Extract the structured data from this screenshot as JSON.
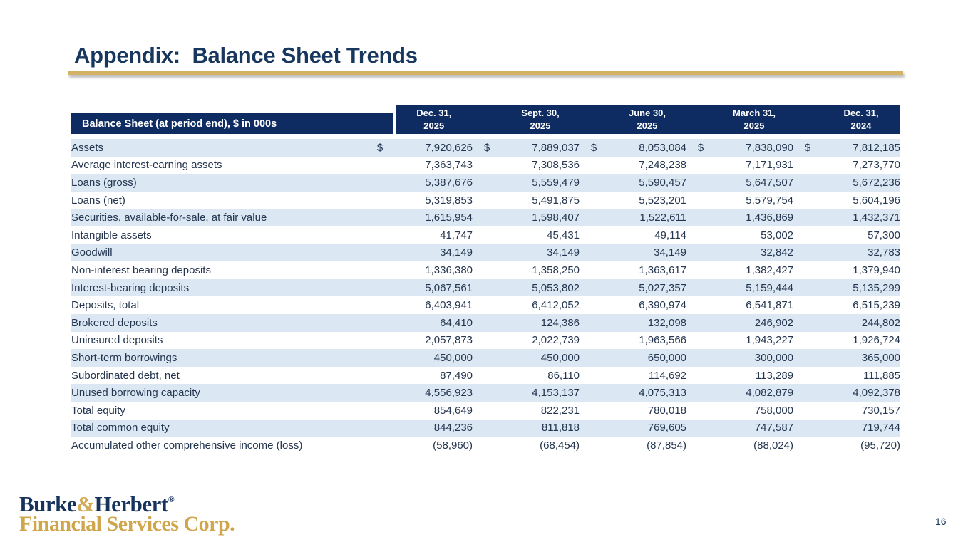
{
  "title": "Appendix:  Balance Sheet Trends",
  "page": {
    "page_number": "16"
  },
  "logo": {
    "brand_burke": "Burke",
    "brand_amp": "&",
    "brand_herbert": "Herbert",
    "reg_mark": "®",
    "subtitle": "Financial Services Corp."
  },
  "colors": {
    "header_navy": "#0e2c62",
    "row_stripe_blue": "#dbe8f4",
    "accent_gold": "#d3b264",
    "title_navy": "#17375f",
    "body_text": "#24354f",
    "logo_gold": "#cfa64c"
  },
  "table": {
    "header_label": "Balance Sheet (at period end), $ in 000s",
    "currency_symbol": "$",
    "columns": [
      {
        "l1": "Dec. 31,",
        "l2": "2025"
      },
      {
        "l1": "Sept. 30,",
        "l2": "2025"
      },
      {
        "l1": "June 30,",
        "l2": "2025"
      },
      {
        "l1": "March 31,",
        "l2": "2025"
      },
      {
        "l1": "Dec. 31,",
        "l2": "2024"
      }
    ],
    "rows": [
      {
        "label": "Assets",
        "dollar": true,
        "values": [
          "7,920,626",
          "7,889,037",
          "8,053,084",
          "7,838,090",
          "7,812,185"
        ]
      },
      {
        "label": "Average interest-earning assets",
        "dollar": false,
        "values": [
          "7,363,743",
          "7,308,536",
          "7,248,238",
          "7,171,931",
          "7,273,770"
        ]
      },
      {
        "label": "Loans (gross)",
        "dollar": false,
        "values": [
          "5,387,676",
          "5,559,479",
          "5,590,457",
          "5,647,507",
          "5,672,236"
        ]
      },
      {
        "label": "Loans (net)",
        "dollar": false,
        "values": [
          "5,319,853",
          "5,491,875",
          "5,523,201",
          "5,579,754",
          "5,604,196"
        ]
      },
      {
        "label": "Securities, available-for-sale, at fair value",
        "dollar": false,
        "values": [
          "1,615,954",
          "1,598,407",
          "1,522,611",
          "1,436,869",
          "1,432,371"
        ]
      },
      {
        "label": "Intangible assets",
        "dollar": false,
        "values": [
          "41,747",
          "45,431",
          "49,114",
          "53,002",
          "57,300"
        ]
      },
      {
        "label": "Goodwill",
        "dollar": false,
        "values": [
          "34,149",
          "34,149",
          "34,149",
          "32,842",
          "32,783"
        ]
      },
      {
        "label": "Non-interest bearing deposits",
        "dollar": false,
        "values": [
          "1,336,380",
          "1,358,250",
          "1,363,617",
          "1,382,427",
          "1,379,940"
        ]
      },
      {
        "label": "Interest-bearing deposits",
        "dollar": false,
        "values": [
          "5,067,561",
          "5,053,802",
          "5,027,357",
          "5,159,444",
          "5,135,299"
        ]
      },
      {
        "label": "Deposits, total",
        "dollar": false,
        "values": [
          "6,403,941",
          "6,412,052",
          "6,390,974",
          "6,541,871",
          "6,515,239"
        ]
      },
      {
        "label": "Brokered deposits",
        "dollar": false,
        "values": [
          "64,410",
          "124,386",
          "132,098",
          "246,902",
          "244,802"
        ]
      },
      {
        "label": "Uninsured deposits",
        "dollar": false,
        "values": [
          "2,057,873",
          "2,022,739",
          "1,963,566",
          "1,943,227",
          "1,926,724"
        ]
      },
      {
        "label": "Short-term borrowings",
        "dollar": false,
        "values": [
          "450,000",
          "450,000",
          "650,000",
          "300,000",
          "365,000"
        ]
      },
      {
        "label": "Subordinated debt, net",
        "dollar": false,
        "values": [
          "87,490",
          "86,110",
          "114,692",
          "113,289",
          "111,885"
        ]
      },
      {
        "label": "Unused borrowing capacity",
        "dollar": false,
        "values": [
          "4,556,923",
          "4,153,137",
          "4,075,313",
          "4,082,879",
          "4,092,378"
        ]
      },
      {
        "label": "Total equity",
        "dollar": false,
        "values": [
          "854,649",
          "822,231",
          "780,018",
          "758,000",
          "730,157"
        ]
      },
      {
        "label": "Total common equity",
        "dollar": false,
        "values": [
          "844,236",
          "811,818",
          "769,605",
          "747,587",
          "719,744"
        ]
      },
      {
        "label": "Accumulated other comprehensive income (loss)",
        "dollar": false,
        "values": [
          "(58,960)",
          "(68,454)",
          "(87,854)",
          "(88,024)",
          "(95,720)"
        ]
      }
    ]
  }
}
